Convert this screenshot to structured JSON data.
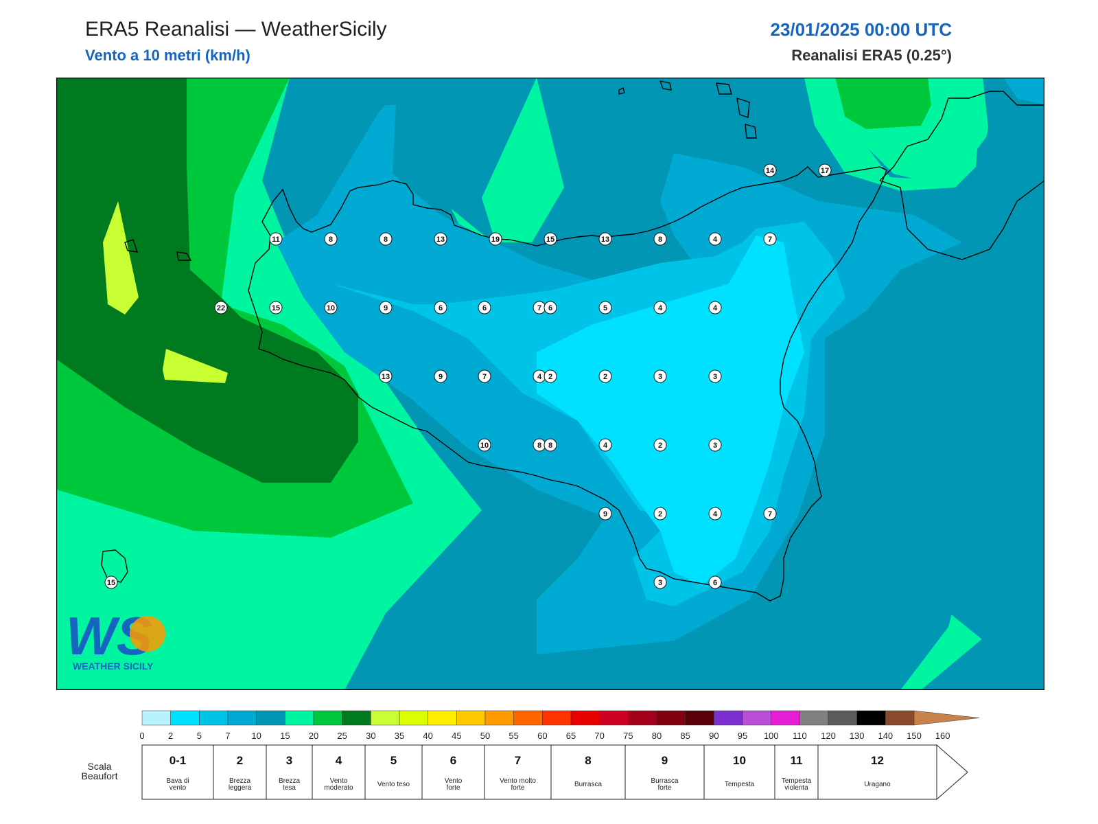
{
  "header": {
    "title": "ERA5 Reanalisi — WeatherSicily",
    "subtitle": "Vento a 10 metri (km/h)",
    "datetime": "23/01/2025 00:00 UTC",
    "source": "Reanalisi ERA5 (0.25°)"
  },
  "logo": {
    "text": "WEATHER SICILY",
    "letters": "WS"
  },
  "colors": {
    "sea_dark_green": "#007a1f",
    "mid_green": "#00c83c",
    "aqua_green": "#00f5a0",
    "teal": "#0096b4",
    "blue_mid": "#00aad2",
    "blue_light": "#00c3e8",
    "cyan": "#00e1ff",
    "yellow_green": "#c8ff32",
    "title_blue": "#1565c0"
  },
  "wind_values": [
    {
      "lon": 12.1,
      "lat": 38.2,
      "v": "11"
    },
    {
      "lon": 12.6,
      "lat": 38.2,
      "v": "8"
    },
    {
      "lon": 13.1,
      "lat": 38.2,
      "v": "8"
    },
    {
      "lon": 13.6,
      "lat": 38.2,
      "v": "13"
    },
    {
      "lon": 14.1,
      "lat": 38.2,
      "v": "19"
    },
    {
      "lon": 14.6,
      "lat": 38.2,
      "v": "15"
    },
    {
      "lon": 15.1,
      "lat": 38.2,
      "v": "13"
    },
    {
      "lon": 15.6,
      "lat": 38.2,
      "v": "8"
    },
    {
      "lon": 16.1,
      "lat": 38.2,
      "v": "4"
    },
    {
      "lon": 16.6,
      "lat": 38.2,
      "v": "7"
    },
    {
      "lon": 11.6,
      "lat": 37.7,
      "v": "22"
    },
    {
      "lon": 12.1,
      "lat": 37.7,
      "v": "15"
    },
    {
      "lon": 12.6,
      "lat": 37.7,
      "v": "10"
    },
    {
      "lon": 13.1,
      "lat": 37.7,
      "v": "9"
    },
    {
      "lon": 13.6,
      "lat": 37.7,
      "v": "6"
    },
    {
      "lon": 14.0,
      "lat": 37.7,
      "v": "6"
    },
    {
      "lon": 14.5,
      "lat": 37.7,
      "v": "7"
    },
    {
      "lon": 14.6,
      "lat": 37.7,
      "v": "6"
    },
    {
      "lon": 15.1,
      "lat": 37.7,
      "v": "5"
    },
    {
      "lon": 15.6,
      "lat": 37.7,
      "v": "4"
    },
    {
      "lon": 16.1,
      "lat": 37.7,
      "v": "4"
    },
    {
      "lon": 13.1,
      "lat": 37.2,
      "v": "13"
    },
    {
      "lon": 13.6,
      "lat": 37.2,
      "v": "9"
    },
    {
      "lon": 14.0,
      "lat": 37.2,
      "v": "7"
    },
    {
      "lon": 14.5,
      "lat": 37.2,
      "v": "4"
    },
    {
      "lon": 14.6,
      "lat": 37.2,
      "v": "2"
    },
    {
      "lon": 15.1,
      "lat": 37.2,
      "v": "2"
    },
    {
      "lon": 15.6,
      "lat": 37.2,
      "v": "3"
    },
    {
      "lon": 16.1,
      "lat": 37.2,
      "v": "3"
    },
    {
      "lon": 14.0,
      "lat": 36.7,
      "v": "10"
    },
    {
      "lon": 14.5,
      "lat": 36.7,
      "v": "8"
    },
    {
      "lon": 14.6,
      "lat": 36.7,
      "v": "8"
    },
    {
      "lon": 15.1,
      "lat": 36.7,
      "v": "4"
    },
    {
      "lon": 15.6,
      "lat": 36.7,
      "v": "2"
    },
    {
      "lon": 16.1,
      "lat": 36.7,
      "v": "3"
    },
    {
      "lon": 15.1,
      "lat": 36.2,
      "v": "9"
    },
    {
      "lon": 15.6,
      "lat": 36.2,
      "v": "2"
    },
    {
      "lon": 16.1,
      "lat": 36.2,
      "v": "4"
    },
    {
      "lon": 16.6,
      "lat": 36.2,
      "v": "7"
    },
    {
      "lon": 15.6,
      "lat": 35.7,
      "v": "3"
    },
    {
      "lon": 16.1,
      "lat": 35.7,
      "v": "6"
    },
    {
      "lon": 16.6,
      "lat": 38.7,
      "v": "14"
    },
    {
      "lon": 17.1,
      "lat": 38.7,
      "v": "17"
    },
    {
      "lon": 10.6,
      "lat": 35.7,
      "v": "15"
    }
  ],
  "colorbar": {
    "ticks": [
      "0",
      "2",
      "5",
      "7",
      "10",
      "15",
      "20",
      "25",
      "30",
      "35",
      "40",
      "45",
      "50",
      "55",
      "60",
      "65",
      "70",
      "75",
      "80",
      "85",
      "90",
      "95",
      "100",
      "110",
      "120",
      "130",
      "140",
      "150",
      "160"
    ],
    "colors": [
      "#b8f2ff",
      "#00e1ff",
      "#00c3e8",
      "#00aad2",
      "#0096b4",
      "#00f5a0",
      "#00c83c",
      "#007a1f",
      "#c8ff32",
      "#d9ff00",
      "#ffee00",
      "#ffc800",
      "#ff9900",
      "#ff6600",
      "#ff3300",
      "#e60000",
      "#cc0022",
      "#a3001b",
      "#800010",
      "#5a0008",
      "#7b2fd1",
      "#b84fd6",
      "#e61fd6",
      "#808080",
      "#5c5c5c",
      "#000000",
      "#8b4a2b",
      "#c8824a"
    ]
  },
  "beaufort": {
    "label_line1": "Scala",
    "label_line2": "Beaufort",
    "items": [
      {
        "num": "0-1",
        "desc": [
          "Bava di",
          "vento"
        ]
      },
      {
        "num": "2",
        "desc": [
          "Brezza",
          "leggera"
        ]
      },
      {
        "num": "3",
        "desc": [
          "Brezza",
          "tesa"
        ]
      },
      {
        "num": "4",
        "desc": [
          "Vento",
          "moderato"
        ]
      },
      {
        "num": "5",
        "desc": [
          "Vento teso"
        ]
      },
      {
        "num": "6",
        "desc": [
          "Vento",
          "forte"
        ]
      },
      {
        "num": "7",
        "desc": [
          "Vento molto",
          "forte"
        ]
      },
      {
        "num": "8",
        "desc": [
          "Burrasca"
        ]
      },
      {
        "num": "9",
        "desc": [
          "Burrasca",
          "forte"
        ]
      },
      {
        "num": "10",
        "desc": [
          "Tempesta"
        ]
      },
      {
        "num": "11",
        "desc": [
          "Tempesta",
          "violenta"
        ]
      },
      {
        "num": "12",
        "desc": [
          "Uragano"
        ]
      }
    ]
  }
}
